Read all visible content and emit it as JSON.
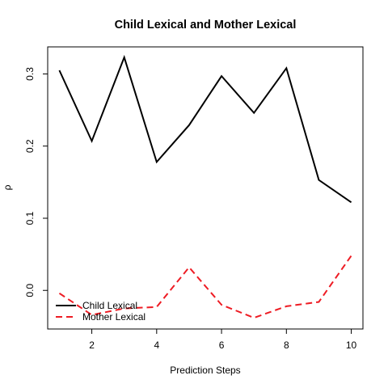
{
  "chart_data": {
    "type": "line",
    "title": "Child Lexical and Mother Lexical",
    "xlabel": "Prediction Steps",
    "ylabel": "ρ",
    "x": [
      1,
      2,
      3,
      4,
      5,
      6,
      7,
      8,
      9,
      10
    ],
    "xlim": [
      0.64,
      10.36
    ],
    "ylim": [
      -0.0535,
      0.3375
    ],
    "x_ticks": [
      2,
      4,
      6,
      8,
      10
    ],
    "x_tick_labels": [
      "2",
      "4",
      "6",
      "8",
      "10"
    ],
    "y_ticks": [
      0.0,
      0.1,
      0.2,
      0.3
    ],
    "y_tick_labels": [
      "0.0",
      "0.1",
      "0.2",
      "0.3"
    ],
    "grid": false,
    "legend_position": "bottom-left",
    "series": [
      {
        "name": "Child Lexical",
        "color": "#000000",
        "line_style": "solid",
        "values": [
          0.305,
          0.207,
          0.323,
          0.178,
          0.229,
          0.297,
          0.246,
          0.308,
          0.153,
          0.122
        ]
      },
      {
        "name": "Mother Lexical",
        "color": "#ee1c24",
        "line_style": "dashed",
        "values": [
          -0.004,
          -0.034,
          -0.025,
          -0.023,
          0.032,
          -0.02,
          -0.038,
          -0.022,
          -0.016,
          0.048
        ]
      }
    ]
  }
}
